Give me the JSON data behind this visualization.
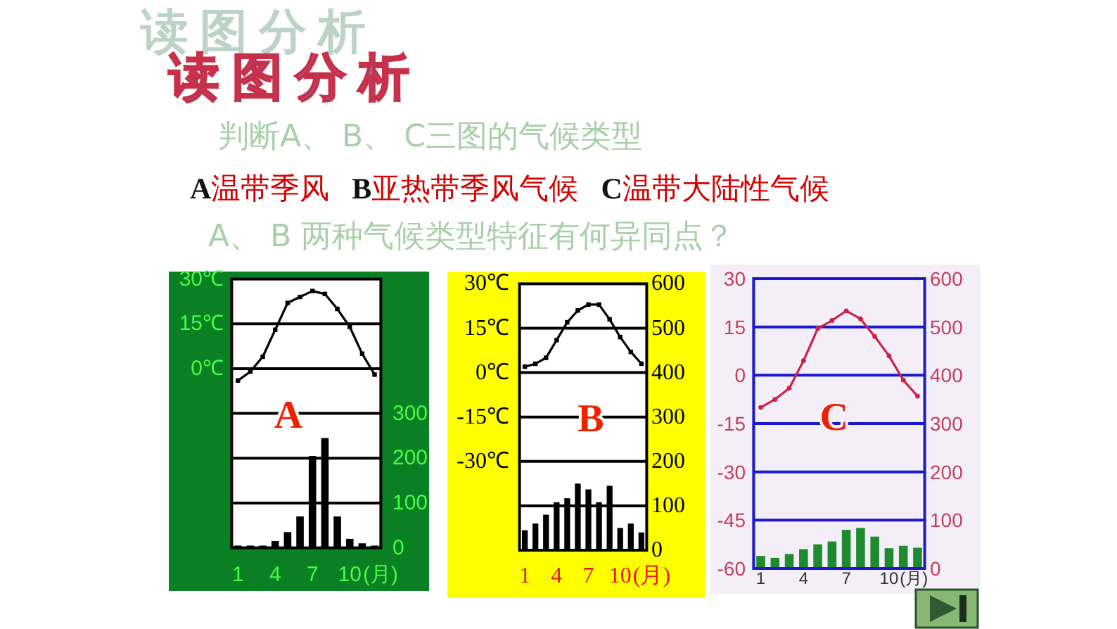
{
  "chart_data": [
    {
      "type": "bar",
      "title": "A",
      "annotations": [
        "读图分析",
        "读图分析",
        "判断A、 B、 C三图的气候类型",
        "A温带季风",
        "B亚热带季风气候",
        "C温带大陆性气候",
        "A、 B 两种气候类型特征有何异同点？"
      ],
      "categories": [
        "1",
        null,
        null,
        "4",
        null,
        null,
        "7",
        null,
        null,
        "10",
        null,
        null
      ],
      "xlabel": "(月)",
      "series": [
        {
          "type": "line",
          "color": "#000000",
          "values": [
            -4,
            -1,
            4,
            13,
            22,
            24,
            26,
            25,
            20,
            14,
            5,
            -2
          ]
        },
        {
          "axis": "y2",
          "color": "#000000",
          "values": [
            5,
            5,
            5,
            15,
            35,
            70,
            205,
            245,
            70,
            20,
            10,
            5
          ]
        }
      ],
      "ylim": [
        -60,
        30
      ],
      "yticks": [
        {
          "value": 30,
          "label": "30℃"
        },
        {
          "value": 15,
          "label": "15℃"
        },
        {
          "value": 0,
          "label": "0℃"
        },
        {
          "value": -15,
          "label": null
        },
        {
          "value": -30,
          "label": null
        },
        {
          "value": -45,
          "label": null
        },
        {
          "value": -60,
          "label": null
        }
      ],
      "y2lim": [
        0,
        600
      ],
      "y2ticks": [
        0,
        100,
        200,
        300
      ],
      "grid": "y",
      "marker": "square"
    },
    {
      "type": "bar",
      "title": "B",
      "categories": [
        "1",
        null,
        null,
        "4",
        null,
        null,
        "7",
        null,
        null,
        "10",
        null,
        null
      ],
      "xlabel": "(月)",
      "series": [
        {
          "type": "line",
          "color": "#000000",
          "values": [
            2,
            3,
            5,
            11,
            17,
            21,
            23,
            23,
            18,
            12,
            7,
            3
          ]
        },
        {
          "axis": "y2",
          "color": "#000000",
          "values": [
            45,
            60,
            80,
            108,
            117,
            150,
            137,
            108,
            145,
            50,
            60,
            40
          ]
        }
      ],
      "ylim": [
        -60,
        30
      ],
      "yticks": [
        {
          "value": 30,
          "label": "30℃"
        },
        {
          "value": 15,
          "label": "15℃"
        },
        {
          "value": 0,
          "label": "0℃"
        },
        {
          "value": -15,
          "label": "-15℃"
        },
        {
          "value": -30,
          "label": "-30℃"
        },
        {
          "value": -45,
          "label": null
        },
        {
          "value": -60,
          "label": null
        }
      ],
      "y2lim": [
        0,
        600
      ],
      "y2ticks": [
        0,
        100,
        200,
        300,
        400,
        500,
        600
      ],
      "grid": "y",
      "marker": "square"
    },
    {
      "type": "bar",
      "title": "C",
      "categories": [
        "1",
        null,
        null,
        "4",
        null,
        null,
        "7",
        null,
        null,
        "10",
        null,
        null
      ],
      "xlabel": "(月)",
      "series": [
        {
          "type": "line",
          "color": "#cc2244",
          "values": [
            -10,
            -7.5,
            -4,
            4.5,
            14.5,
            17,
            20,
            17.5,
            12,
            6,
            -1.5,
            -6.5
          ]
        },
        {
          "axis": "y2",
          "color": "#1e8c2e",
          "values": [
            26,
            22,
            30,
            40,
            50,
            56,
            80,
            84,
            66,
            42,
            47,
            43
          ]
        }
      ],
      "ylim": [
        -60,
        30
      ],
      "yticks": [
        30,
        15,
        0,
        -15,
        -30,
        -45,
        -60
      ],
      "y2lim": [
        0,
        600
      ],
      "y2ticks": [
        0,
        100,
        200,
        300,
        400,
        500,
        600
      ],
      "grid": "y",
      "marker": "circle"
    }
  ]
}
